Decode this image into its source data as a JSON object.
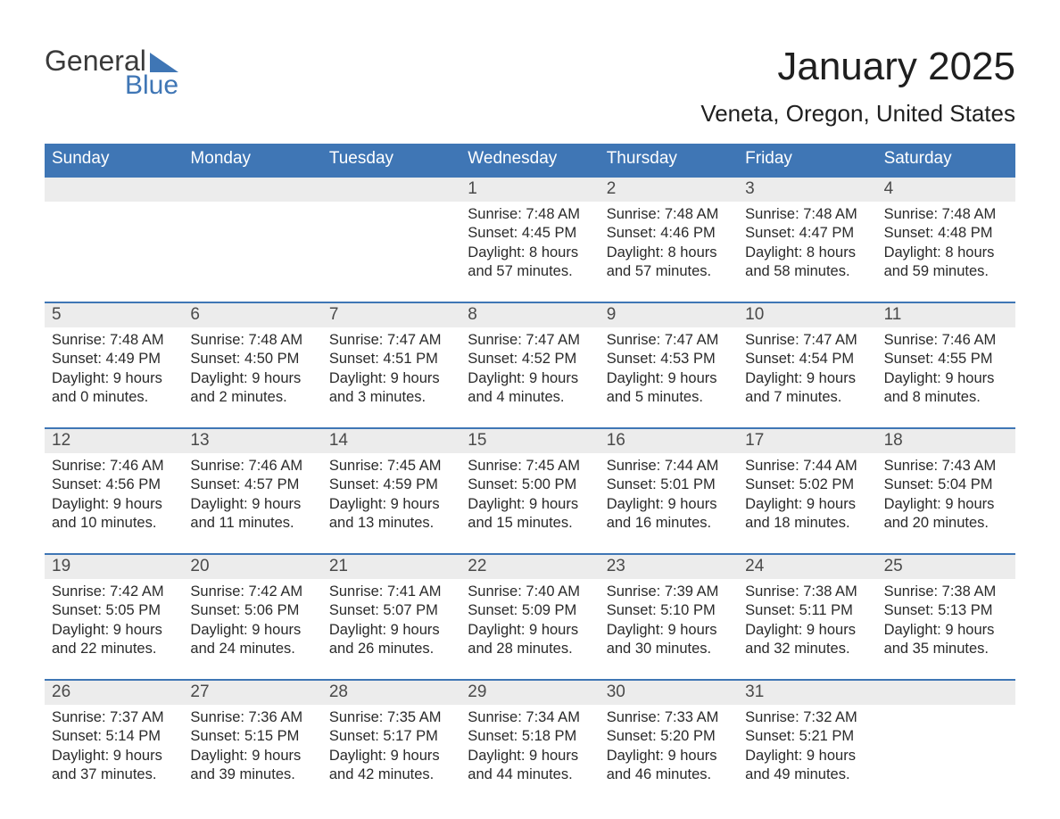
{
  "logo": {
    "text1": "General",
    "text2": "Blue"
  },
  "title": "January 2025",
  "subtitle": "Veneta, Oregon, United States",
  "colors": {
    "header_bg": "#3f76b5",
    "header_text": "#ffffff",
    "daynum_bg": "#ececec",
    "border": "#3f76b5",
    "body_text": "#2a2a2a",
    "title_text": "#1f1f1f",
    "background": "#ffffff"
  },
  "fontsize": {
    "title": 44,
    "subtitle": 26,
    "dow": 19,
    "daynum": 19,
    "body": 16.5
  },
  "daysOfWeek": [
    "Sunday",
    "Monday",
    "Tuesday",
    "Wednesday",
    "Thursday",
    "Friday",
    "Saturday"
  ],
  "weeks": [
    [
      null,
      null,
      null,
      {
        "n": "1",
        "sunrise": "7:48 AM",
        "sunset": "4:45 PM",
        "daylight": "8 hours and 57 minutes."
      },
      {
        "n": "2",
        "sunrise": "7:48 AM",
        "sunset": "4:46 PM",
        "daylight": "8 hours and 57 minutes."
      },
      {
        "n": "3",
        "sunrise": "7:48 AM",
        "sunset": "4:47 PM",
        "daylight": "8 hours and 58 minutes."
      },
      {
        "n": "4",
        "sunrise": "7:48 AM",
        "sunset": "4:48 PM",
        "daylight": "8 hours and 59 minutes."
      }
    ],
    [
      {
        "n": "5",
        "sunrise": "7:48 AM",
        "sunset": "4:49 PM",
        "daylight": "9 hours and 0 minutes."
      },
      {
        "n": "6",
        "sunrise": "7:48 AM",
        "sunset": "4:50 PM",
        "daylight": "9 hours and 2 minutes."
      },
      {
        "n": "7",
        "sunrise": "7:47 AM",
        "sunset": "4:51 PM",
        "daylight": "9 hours and 3 minutes."
      },
      {
        "n": "8",
        "sunrise": "7:47 AM",
        "sunset": "4:52 PM",
        "daylight": "9 hours and 4 minutes."
      },
      {
        "n": "9",
        "sunrise": "7:47 AM",
        "sunset": "4:53 PM",
        "daylight": "9 hours and 5 minutes."
      },
      {
        "n": "10",
        "sunrise": "7:47 AM",
        "sunset": "4:54 PM",
        "daylight": "9 hours and 7 minutes."
      },
      {
        "n": "11",
        "sunrise": "7:46 AM",
        "sunset": "4:55 PM",
        "daylight": "9 hours and 8 minutes."
      }
    ],
    [
      {
        "n": "12",
        "sunrise": "7:46 AM",
        "sunset": "4:56 PM",
        "daylight": "9 hours and 10 minutes."
      },
      {
        "n": "13",
        "sunrise": "7:46 AM",
        "sunset": "4:57 PM",
        "daylight": "9 hours and 11 minutes."
      },
      {
        "n": "14",
        "sunrise": "7:45 AM",
        "sunset": "4:59 PM",
        "daylight": "9 hours and 13 minutes."
      },
      {
        "n": "15",
        "sunrise": "7:45 AM",
        "sunset": "5:00 PM",
        "daylight": "9 hours and 15 minutes."
      },
      {
        "n": "16",
        "sunrise": "7:44 AM",
        "sunset": "5:01 PM",
        "daylight": "9 hours and 16 minutes."
      },
      {
        "n": "17",
        "sunrise": "7:44 AM",
        "sunset": "5:02 PM",
        "daylight": "9 hours and 18 minutes."
      },
      {
        "n": "18",
        "sunrise": "7:43 AM",
        "sunset": "5:04 PM",
        "daylight": "9 hours and 20 minutes."
      }
    ],
    [
      {
        "n": "19",
        "sunrise": "7:42 AM",
        "sunset": "5:05 PM",
        "daylight": "9 hours and 22 minutes."
      },
      {
        "n": "20",
        "sunrise": "7:42 AM",
        "sunset": "5:06 PM",
        "daylight": "9 hours and 24 minutes."
      },
      {
        "n": "21",
        "sunrise": "7:41 AM",
        "sunset": "5:07 PM",
        "daylight": "9 hours and 26 minutes."
      },
      {
        "n": "22",
        "sunrise": "7:40 AM",
        "sunset": "5:09 PM",
        "daylight": "9 hours and 28 minutes."
      },
      {
        "n": "23",
        "sunrise": "7:39 AM",
        "sunset": "5:10 PM",
        "daylight": "9 hours and 30 minutes."
      },
      {
        "n": "24",
        "sunrise": "7:38 AM",
        "sunset": "5:11 PM",
        "daylight": "9 hours and 32 minutes."
      },
      {
        "n": "25",
        "sunrise": "7:38 AM",
        "sunset": "5:13 PM",
        "daylight": "9 hours and 35 minutes."
      }
    ],
    [
      {
        "n": "26",
        "sunrise": "7:37 AM",
        "sunset": "5:14 PM",
        "daylight": "9 hours and 37 minutes."
      },
      {
        "n": "27",
        "sunrise": "7:36 AM",
        "sunset": "5:15 PM",
        "daylight": "9 hours and 39 minutes."
      },
      {
        "n": "28",
        "sunrise": "7:35 AM",
        "sunset": "5:17 PM",
        "daylight": "9 hours and 42 minutes."
      },
      {
        "n": "29",
        "sunrise": "7:34 AM",
        "sunset": "5:18 PM",
        "daylight": "9 hours and 44 minutes."
      },
      {
        "n": "30",
        "sunrise": "7:33 AM",
        "sunset": "5:20 PM",
        "daylight": "9 hours and 46 minutes."
      },
      {
        "n": "31",
        "sunrise": "7:32 AM",
        "sunset": "5:21 PM",
        "daylight": "9 hours and 49 minutes."
      },
      null
    ]
  ],
  "labels": {
    "sunrise": "Sunrise: ",
    "sunset": "Sunset: ",
    "daylight": "Daylight: "
  }
}
